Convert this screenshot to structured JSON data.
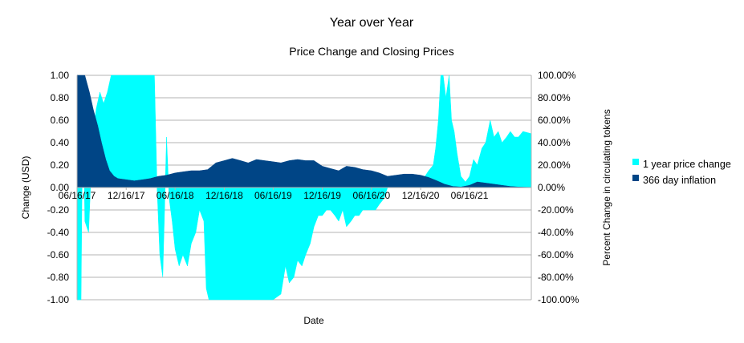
{
  "chart_data": {
    "type": "area",
    "title": "Year over Year",
    "subtitle": "Price Change and Closing Prices",
    "xlabel": "Date",
    "ylabel_left": "Change (USD)",
    "ylabel_right": "Percent Change in circulating tokens",
    "ylim_left": [
      -1.0,
      1.0
    ],
    "ylim_right": [
      -100,
      100
    ],
    "y_ticks_left": [
      "1.00",
      "0.80",
      "0.60",
      "0.40",
      "0.20",
      "0.00",
      "-0.20",
      "-0.40",
      "-0.60",
      "-0.80",
      "-1.00"
    ],
    "y_ticks_right": [
      "100.00%",
      "80.00%",
      "60.00%",
      "40.00%",
      "20.00%",
      "0.00%",
      "-20.00%",
      "-40.00%",
      "-60.00%",
      "-80.00%",
      "-100.00%"
    ],
    "x_ticks": [
      "06/16/17",
      "12/16/17",
      "06/16/18",
      "12/16/18",
      "06/16/19",
      "12/16/19",
      "06/16/20",
      "12/16/20",
      "06/16/21"
    ],
    "x_range": [
      "06/16/17",
      "02/01/22"
    ],
    "legend_position": "right",
    "series": [
      {
        "name": "1 year price change",
        "color": "#00ffff",
        "axis": "left",
        "points": [
          [
            "06/16/17",
            -1.0
          ],
          [
            "07/01/17",
            -1.0
          ],
          [
            "07/08/17",
            1.0
          ],
          [
            "07/15/17",
            -0.3
          ],
          [
            "07/29/17",
            -0.4
          ],
          [
            "08/12/17",
            0.4
          ],
          [
            "08/26/17",
            0.7
          ],
          [
            "09/09/17",
            0.85
          ],
          [
            "09/23/17",
            0.75
          ],
          [
            "10/07/17",
            0.85
          ],
          [
            "10/21/17",
            1.0
          ],
          [
            "11/04/17",
            1.0
          ],
          [
            "12/16/17",
            1.0
          ],
          [
            "02/01/18",
            1.0
          ],
          [
            "03/31/18",
            1.0
          ],
          [
            "04/10/18",
            0.0
          ],
          [
            "04/20/18",
            -0.6
          ],
          [
            "05/01/18",
            -0.8
          ],
          [
            "05/15/18",
            0.45
          ],
          [
            "05/25/18",
            -0.1
          ],
          [
            "06/05/18",
            -0.3
          ],
          [
            "06/16/18",
            -0.55
          ],
          [
            "07/01/18",
            -0.7
          ],
          [
            "07/15/18",
            -0.6
          ],
          [
            "08/01/18",
            -0.7
          ],
          [
            "08/15/18",
            -0.5
          ],
          [
            "09/01/18",
            -0.4
          ],
          [
            "09/15/18",
            -0.2
          ],
          [
            "10/01/18",
            -0.3
          ],
          [
            "10/10/18",
            -0.9
          ],
          [
            "10/20/18",
            -1.0
          ],
          [
            "12/16/18",
            -1.0
          ],
          [
            "02/01/19",
            -1.0
          ],
          [
            "03/15/19",
            -1.0
          ],
          [
            "05/01/19",
            -1.0
          ],
          [
            "06/16/19",
            -1.0
          ],
          [
            "07/15/19",
            -0.95
          ],
          [
            "08/01/19",
            -0.7
          ],
          [
            "08/15/19",
            -0.85
          ],
          [
            "09/01/19",
            -0.8
          ],
          [
            "09/15/19",
            -0.65
          ],
          [
            "10/01/19",
            -0.7
          ],
          [
            "10/15/19",
            -0.6
          ],
          [
            "11/01/19",
            -0.5
          ],
          [
            "11/15/19",
            -0.35
          ],
          [
            "12/01/19",
            -0.25
          ],
          [
            "12/16/19",
            -0.25
          ],
          [
            "01/01/20",
            -0.2
          ],
          [
            "01/15/20",
            -0.2
          ],
          [
            "02/01/20",
            -0.25
          ],
          [
            "02/15/20",
            -0.3
          ],
          [
            "03/01/20",
            -0.2
          ],
          [
            "03/15/20",
            -0.35
          ],
          [
            "04/01/20",
            -0.3
          ],
          [
            "04/15/20",
            -0.25
          ],
          [
            "05/01/20",
            -0.25
          ],
          [
            "05/15/20",
            -0.2
          ],
          [
            "06/01/20",
            -0.2
          ],
          [
            "06/16/20",
            -0.2
          ],
          [
            "07/01/20",
            -0.2
          ],
          [
            "07/15/20",
            -0.15
          ],
          [
            "08/01/20",
            -0.1
          ],
          [
            "08/15/20",
            0.0
          ],
          [
            "09/01/20",
            0.0
          ],
          [
            "10/15/20",
            0.0
          ],
          [
            "11/15/20",
            0.05
          ],
          [
            "12/16/20",
            0.08
          ],
          [
            "01/01/21",
            0.1
          ],
          [
            "01/15/21",
            0.15
          ],
          [
            "02/01/21",
            0.2
          ],
          [
            "02/10/21",
            0.35
          ],
          [
            "02/20/21",
            0.6
          ],
          [
            "03/01/21",
            1.0
          ],
          [
            "03/10/21",
            1.0
          ],
          [
            "03/20/21",
            0.8
          ],
          [
            "04/01/21",
            1.0
          ],
          [
            "04/10/21",
            0.6
          ],
          [
            "04/20/21",
            0.5
          ],
          [
            "05/01/21",
            0.3
          ],
          [
            "05/15/21",
            0.1
          ],
          [
            "06/01/21",
            0.05
          ],
          [
            "06/16/21",
            0.1
          ],
          [
            "07/01/21",
            0.25
          ],
          [
            "07/15/21",
            0.2
          ],
          [
            "08/01/21",
            0.35
          ],
          [
            "08/15/21",
            0.4
          ],
          [
            "09/01/21",
            0.6
          ],
          [
            "09/15/21",
            0.45
          ],
          [
            "10/01/21",
            0.5
          ],
          [
            "10/15/21",
            0.4
          ],
          [
            "11/01/21",
            0.45
          ],
          [
            "11/15/21",
            0.5
          ],
          [
            "12/01/21",
            0.45
          ],
          [
            "12/15/21",
            0.45
          ],
          [
            "01/01/22",
            0.5
          ],
          [
            "02/01/22",
            0.48
          ]
        ]
      },
      {
        "name": "366 day inflation",
        "color": "#004586",
        "axis": "right",
        "points": [
          [
            "06/16/17",
            100
          ],
          [
            "07/15/17",
            100
          ],
          [
            "08/01/17",
            85
          ],
          [
            "08/15/17",
            70
          ],
          [
            "09/01/17",
            55
          ],
          [
            "09/15/17",
            40
          ],
          [
            "10/01/17",
            25
          ],
          [
            "10/15/17",
            15
          ],
          [
            "11/01/17",
            10
          ],
          [
            "11/15/17",
            8
          ],
          [
            "12/16/17",
            7
          ],
          [
            "01/15/18",
            6
          ],
          [
            "02/15/18",
            7
          ],
          [
            "03/15/18",
            8
          ],
          [
            "04/15/18",
            10
          ],
          [
            "05/15/18",
            11
          ],
          [
            "06/16/18",
            13
          ],
          [
            "07/15/18",
            14
          ],
          [
            "08/15/18",
            15
          ],
          [
            "09/15/18",
            15
          ],
          [
            "10/15/18",
            16
          ],
          [
            "11/15/18",
            22
          ],
          [
            "12/16/18",
            24
          ],
          [
            "01/15/19",
            26
          ],
          [
            "02/15/19",
            24
          ],
          [
            "03/15/19",
            22
          ],
          [
            "04/15/19",
            25
          ],
          [
            "05/15/19",
            24
          ],
          [
            "06/16/19",
            23
          ],
          [
            "07/15/19",
            22
          ],
          [
            "08/15/19",
            24
          ],
          [
            "09/15/19",
            25
          ],
          [
            "10/15/19",
            24
          ],
          [
            "11/15/19",
            24
          ],
          [
            "12/16/19",
            19
          ],
          [
            "01/15/20",
            17
          ],
          [
            "02/15/20",
            15
          ],
          [
            "03/15/20",
            19
          ],
          [
            "04/15/20",
            18
          ],
          [
            "05/15/20",
            16
          ],
          [
            "06/16/20",
            15
          ],
          [
            "07/15/20",
            13
          ],
          [
            "08/15/20",
            10
          ],
          [
            "09/15/20",
            11
          ],
          [
            "10/15/20",
            12
          ],
          [
            "11/15/20",
            12
          ],
          [
            "12/16/20",
            11
          ],
          [
            "01/15/21",
            9
          ],
          [
            "02/15/21",
            6
          ],
          [
            "03/15/21",
            3
          ],
          [
            "04/15/21",
            1
          ],
          [
            "05/15/21",
            0.5
          ],
          [
            "06/16/21",
            2
          ],
          [
            "07/15/21",
            5
          ],
          [
            "08/15/21",
            4
          ],
          [
            "09/15/21",
            3
          ],
          [
            "10/15/21",
            2
          ],
          [
            "11/15/21",
            1
          ],
          [
            "12/15/21",
            0.5
          ],
          [
            "01/15/22",
            0.3
          ],
          [
            "02/01/22",
            0.2
          ]
        ]
      }
    ]
  }
}
